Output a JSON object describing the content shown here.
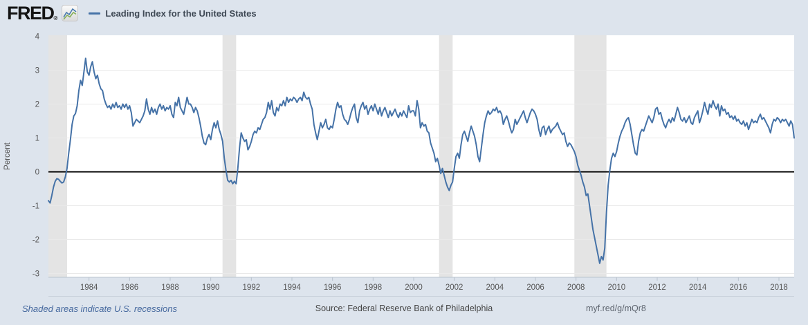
{
  "header": {
    "logo_text": "FRED",
    "logo_registered": "®",
    "series_label": "Leading Index for the United States"
  },
  "footer": {
    "recession_note": "Shaded areas indicate U.S. recessions",
    "source": "Source: Federal Reserve Bank of Philadelphia",
    "short_url": "myf.red/g/mQr8"
  },
  "colors": {
    "background": "#dde4ed",
    "plot_background": "#ffffff",
    "recession_band": "#e4e4e4",
    "gridline": "#e9e9e9",
    "zero_line": "#000000",
    "series_line": "#4572a7",
    "axis_line": "#b9c3ce",
    "tick_text": "#555555",
    "separator": "#c7d0da"
  },
  "chart_data": {
    "type": "line",
    "title": "Leading Index for the United States",
    "ylabel": "Percent",
    "xlabel": "",
    "grid": true,
    "zero_line": true,
    "legend_position": "top-left-header",
    "ylim": [
      -3,
      4
    ],
    "y_ticks": [
      4,
      3,
      2,
      1,
      0,
      -1,
      -2,
      -3
    ],
    "x_tick_years": [
      1984,
      1986,
      1988,
      1990,
      1992,
      1994,
      1996,
      1998,
      2000,
      2002,
      2004,
      2006,
      2008,
      2010,
      2012,
      2014,
      2016,
      2018
    ],
    "x_range_years": [
      1982.0,
      2018.75
    ],
    "frequency": "monthly",
    "start_year": 1982,
    "start_month": 1,
    "recession_bands_years": [
      [
        1982.0,
        1982.92
      ],
      [
        1990.58,
        1991.25
      ],
      [
        2001.25,
        2001.92
      ],
      [
        2007.92,
        2009.5
      ]
    ],
    "series": [
      {
        "name": "Leading Index for the United States",
        "color": "#4572a7",
        "values": [
          -0.85,
          -0.92,
          -0.7,
          -0.45,
          -0.28,
          -0.2,
          -0.22,
          -0.28,
          -0.33,
          -0.3,
          -0.15,
          0.1,
          0.55,
          0.95,
          1.4,
          1.65,
          1.72,
          1.95,
          2.4,
          2.7,
          2.55,
          2.95,
          3.35,
          2.95,
          2.85,
          3.1,
          3.25,
          2.95,
          2.75,
          2.85,
          2.6,
          2.45,
          2.4,
          2.15,
          2.0,
          1.9,
          1.95,
          1.85,
          2.0,
          1.9,
          2.05,
          1.9,
          1.95,
          1.85,
          2.0,
          1.9,
          2.0,
          1.85,
          1.95,
          1.75,
          1.35,
          1.45,
          1.55,
          1.5,
          1.45,
          1.55,
          1.65,
          1.8,
          2.15,
          1.85,
          1.7,
          1.9,
          1.75,
          1.85,
          1.7,
          1.9,
          2.0,
          1.85,
          1.95,
          1.8,
          1.9,
          1.85,
          1.95,
          1.7,
          1.6,
          2.05,
          1.95,
          2.2,
          1.9,
          1.8,
          1.7,
          1.95,
          2.2,
          2.0,
          2.0,
          1.9,
          1.75,
          1.9,
          1.8,
          1.6,
          1.35,
          1.05,
          0.85,
          0.8,
          1.0,
          1.1,
          0.95,
          1.25,
          1.45,
          1.3,
          1.5,
          1.25,
          1.1,
          0.9,
          0.4,
          0.05,
          -0.25,
          -0.3,
          -0.25,
          -0.35,
          -0.28,
          -0.35,
          0.1,
          0.7,
          1.15,
          1.0,
          0.9,
          0.95,
          0.65,
          0.75,
          0.9,
          1.1,
          1.2,
          1.15,
          1.3,
          1.25,
          1.4,
          1.55,
          1.6,
          1.75,
          2.05,
          1.85,
          2.1,
          1.75,
          1.65,
          1.9,
          1.8,
          2.0,
          1.95,
          2.1,
          1.95,
          2.2,
          2.05,
          2.15,
          2.1,
          2.2,
          2.15,
          2.05,
          2.15,
          2.2,
          2.1,
          2.35,
          2.2,
          2.15,
          2.2,
          2.0,
          1.85,
          1.4,
          1.15,
          0.95,
          1.2,
          1.45,
          1.3,
          1.4,
          1.55,
          1.3,
          1.25,
          1.35,
          1.3,
          1.55,
          1.85,
          2.05,
          1.9,
          1.95,
          1.7,
          1.55,
          1.5,
          1.4,
          1.55,
          1.75,
          1.9,
          2.0,
          1.6,
          1.45,
          1.8,
          1.95,
          2.05,
          1.85,
          1.95,
          1.7,
          1.85,
          1.95,
          1.8,
          2.0,
          1.85,
          1.7,
          1.9,
          1.65,
          1.8,
          1.9,
          1.75,
          1.6,
          1.8,
          1.65,
          1.75,
          1.85,
          1.7,
          1.6,
          1.75,
          1.65,
          1.8,
          1.7,
          1.6,
          1.95,
          1.75,
          1.8,
          1.8,
          1.65,
          2.1,
          1.85,
          1.3,
          1.45,
          1.35,
          1.4,
          1.2,
          1.15,
          0.85,
          0.7,
          0.55,
          0.3,
          0.4,
          0.2,
          -0.05,
          0.1,
          -0.1,
          -0.3,
          -0.45,
          -0.55,
          -0.4,
          -0.3,
          0.1,
          0.45,
          0.55,
          0.4,
          0.8,
          1.1,
          1.2,
          1.05,
          0.9,
          1.15,
          1.35,
          1.2,
          1.05,
          0.8,
          0.45,
          0.3,
          0.7,
          1.1,
          1.45,
          1.65,
          1.8,
          1.7,
          1.75,
          1.85,
          1.8,
          1.9,
          1.75,
          1.8,
          1.7,
          1.4,
          1.55,
          1.65,
          1.5,
          1.3,
          1.15,
          1.25,
          1.55,
          1.4,
          1.5,
          1.6,
          1.7,
          1.8,
          1.6,
          1.45,
          1.6,
          1.75,
          1.85,
          1.8,
          1.7,
          1.55,
          1.25,
          1.05,
          1.3,
          1.35,
          1.1,
          1.25,
          1.35,
          1.15,
          1.25,
          1.3,
          1.35,
          1.45,
          1.3,
          1.2,
          1.1,
          1.15,
          0.9,
          0.75,
          0.85,
          0.8,
          0.7,
          0.6,
          0.45,
          0.2,
          0.05,
          -0.1,
          -0.3,
          -0.45,
          -0.7,
          -0.65,
          -1.0,
          -1.35,
          -1.7,
          -1.95,
          -2.2,
          -2.45,
          -2.7,
          -2.5,
          -2.6,
          -2.25,
          -1.2,
          -0.4,
          0.05,
          0.4,
          0.55,
          0.45,
          0.6,
          0.85,
          1.05,
          1.2,
          1.3,
          1.45,
          1.55,
          1.6,
          1.4,
          1.1,
          0.8,
          0.55,
          0.5,
          0.9,
          1.15,
          1.25,
          1.2,
          1.35,
          1.5,
          1.65,
          1.55,
          1.45,
          1.6,
          1.85,
          1.9,
          1.7,
          1.75,
          1.55,
          1.4,
          1.3,
          1.45,
          1.55,
          1.45,
          1.6,
          1.5,
          1.7,
          1.9,
          1.75,
          1.55,
          1.5,
          1.6,
          1.45,
          1.55,
          1.65,
          1.45,
          1.4,
          1.6,
          1.7,
          1.8,
          1.45,
          1.6,
          1.8,
          2.05,
          1.85,
          1.7,
          2.0,
          1.9,
          2.1,
          1.95,
          1.85,
          2.0,
          1.65,
          1.95,
          1.8,
          1.85,
          1.7,
          1.75,
          1.6,
          1.65,
          1.55,
          1.65,
          1.5,
          1.55,
          1.45,
          1.4,
          1.5,
          1.35,
          1.45,
          1.25,
          1.4,
          1.55,
          1.45,
          1.5,
          1.45,
          1.6,
          1.7,
          1.55,
          1.6,
          1.5,
          1.4,
          1.3,
          1.15,
          1.4,
          1.55,
          1.5,
          1.6,
          1.55,
          1.45,
          1.55,
          1.5,
          1.55,
          1.45,
          1.35,
          1.5,
          1.4,
          1.0
        ]
      }
    ]
  }
}
